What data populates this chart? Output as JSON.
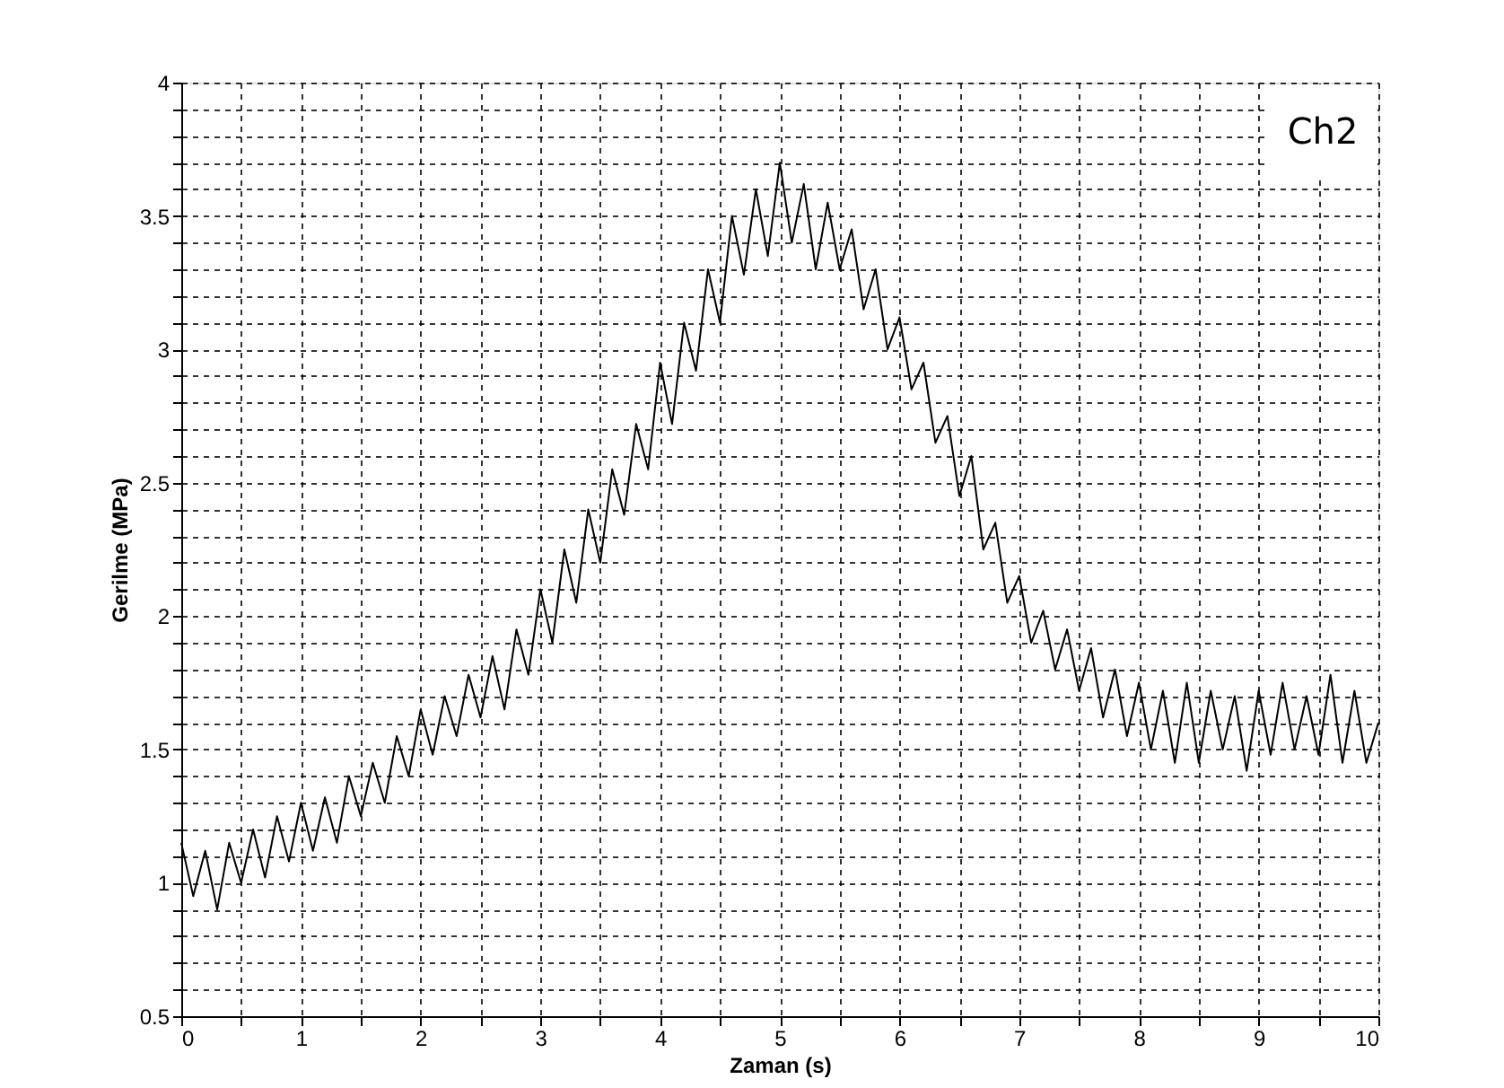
{
  "chart_data": {
    "type": "line",
    "xlabel": "Zaman (s)",
    "ylabel": "Gerilme (MPa)",
    "annotations": [
      "Ch2"
    ],
    "x": [
      0.0,
      0.1,
      0.2,
      0.3,
      0.4,
      0.5,
      0.6,
      0.7,
      0.8,
      0.9,
      1.0,
      1.1,
      1.2,
      1.3,
      1.4,
      1.5,
      1.6,
      1.7,
      1.8,
      1.9,
      2.0,
      2.1,
      2.2,
      2.3,
      2.4,
      2.5,
      2.6,
      2.7,
      2.8,
      2.9,
      3.0,
      3.1,
      3.2,
      3.3,
      3.4,
      3.5,
      3.6,
      3.7,
      3.8,
      3.9,
      4.0,
      4.1,
      4.2,
      4.3,
      4.4,
      4.5,
      4.6,
      4.7,
      4.8,
      4.9,
      5.0,
      5.1,
      5.2,
      5.3,
      5.4,
      5.5,
      5.6,
      5.7,
      5.8,
      5.9,
      6.0,
      6.1,
      6.2,
      6.3,
      6.4,
      6.5,
      6.6,
      6.7,
      6.8,
      6.9,
      7.0,
      7.1,
      7.2,
      7.3,
      7.4,
      7.5,
      7.6,
      7.7,
      7.8,
      7.9,
      8.0,
      8.1,
      8.2,
      8.3,
      8.4,
      8.5,
      8.6,
      8.7,
      8.8,
      8.9,
      9.0,
      9.1,
      9.2,
      9.3,
      9.4,
      9.5,
      9.6,
      9.7,
      9.8,
      9.9,
      10.0
    ],
    "series": [
      {
        "color": "#000000",
        "values": [
          1.15,
          0.95,
          1.12,
          0.9,
          1.15,
          1.0,
          1.2,
          1.02,
          1.25,
          1.08,
          1.3,
          1.12,
          1.32,
          1.15,
          1.4,
          1.25,
          1.45,
          1.3,
          1.55,
          1.4,
          1.65,
          1.48,
          1.7,
          1.55,
          1.78,
          1.62,
          1.85,
          1.65,
          1.95,
          1.78,
          2.1,
          1.9,
          2.25,
          2.05,
          2.4,
          2.2,
          2.55,
          2.38,
          2.72,
          2.55,
          2.95,
          2.72,
          3.1,
          2.92,
          3.3,
          3.1,
          3.5,
          3.28,
          3.6,
          3.35,
          3.7,
          3.4,
          3.62,
          3.3,
          3.55,
          3.3,
          3.45,
          3.15,
          3.3,
          3.0,
          3.12,
          2.85,
          2.95,
          2.65,
          2.75,
          2.45,
          2.6,
          2.25,
          2.35,
          2.05,
          2.15,
          1.9,
          2.02,
          1.8,
          1.95,
          1.72,
          1.88,
          1.62,
          1.8,
          1.55,
          1.75,
          1.5,
          1.72,
          1.45,
          1.75,
          1.45,
          1.72,
          1.5,
          1.7,
          1.42,
          1.72,
          1.48,
          1.75,
          1.5,
          1.7,
          1.48,
          1.78,
          1.45,
          1.72,
          1.45,
          1.6
        ]
      }
    ],
    "xlim": [
      0,
      10
    ],
    "ylim": [
      0.5,
      4
    ],
    "xticks": [
      0,
      {
        "value": 0.5,
        "label": null
      },
      1,
      {
        "value": 1.5,
        "label": null
      },
      2,
      {
        "value": 2.5,
        "label": null
      },
      3,
      {
        "value": 3.5,
        "label": null
      },
      4,
      {
        "value": 4.5,
        "label": null
      },
      5,
      {
        "value": 5.5,
        "label": null
      },
      6,
      {
        "value": 6.5,
        "label": null
      },
      7,
      {
        "value": 7.5,
        "label": null
      },
      8,
      {
        "value": 8.5,
        "label": null
      },
      9,
      {
        "value": 9.5,
        "label": null
      },
      10
    ],
    "yticks": [
      0.5,
      {
        "value": 0.6,
        "label": null
      },
      {
        "value": 0.7,
        "label": null
      },
      {
        "value": 0.8,
        "label": null
      },
      {
        "value": 0.9,
        "label": null
      },
      1,
      {
        "value": 1.1,
        "label": null
      },
      {
        "value": 1.2,
        "label": null
      },
      {
        "value": 1.3,
        "label": null
      },
      {
        "value": 1.4,
        "label": null
      },
      1.5,
      {
        "value": 1.6,
        "label": null
      },
      {
        "value": 1.7,
        "label": null
      },
      {
        "value": 1.8,
        "label": null
      },
      {
        "value": 1.9,
        "label": null
      },
      2,
      {
        "value": 2.1,
        "label": null
      },
      {
        "value": 2.2,
        "label": null
      },
      {
        "value": 2.3,
        "label": null
      },
      {
        "value": 2.4,
        "label": null
      },
      2.5,
      {
        "value": 2.6,
        "label": null
      },
      {
        "value": 2.7,
        "label": null
      },
      {
        "value": 2.8,
        "label": null
      },
      {
        "value": 2.9,
        "label": null
      },
      3,
      {
        "value": 3.1,
        "label": null
      },
      {
        "value": 3.2,
        "label": null
      },
      {
        "value": 3.3,
        "label": null
      },
      {
        "value": 3.4,
        "label": null
      },
      3.5,
      {
        "value": 3.6,
        "label": null
      },
      {
        "value": 3.7,
        "label": null
      },
      {
        "value": 3.8,
        "label": null
      },
      {
        "value": 3.9,
        "label": null
      },
      4
    ],
    "grid": true,
    "line_style": "solid",
    "marker": "none"
  }
}
